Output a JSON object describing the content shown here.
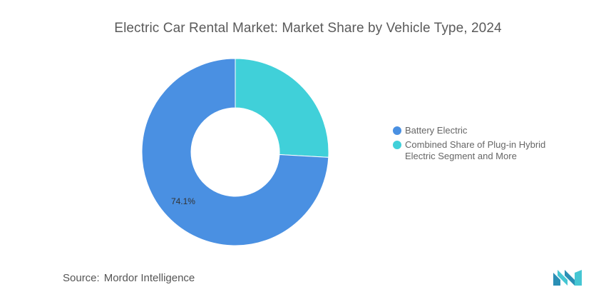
{
  "title": "Electric Car Rental Market: Market Share by Vehicle Type, 2024",
  "source": {
    "prefix": "Source:",
    "name": "Mordor Intelligence"
  },
  "logo": {
    "icon": "mordor-intelligence-logo-icon",
    "colors": [
      "#2a8fb5",
      "#45c6d3"
    ]
  },
  "chart_data": {
    "type": "donut",
    "title": "Electric Car Rental Market: Market Share by Vehicle Type, 2024",
    "legend_position": "right",
    "slices": [
      {
        "name": "Battery Electric",
        "value": 74.1,
        "label": "74.1%",
        "color": "#4a90e2"
      },
      {
        "name": "Combined Share of Plug-in Hybrid Electric Segment and More",
        "value": 25.9,
        "label": "",
        "color": "#40d0d9"
      }
    ]
  }
}
